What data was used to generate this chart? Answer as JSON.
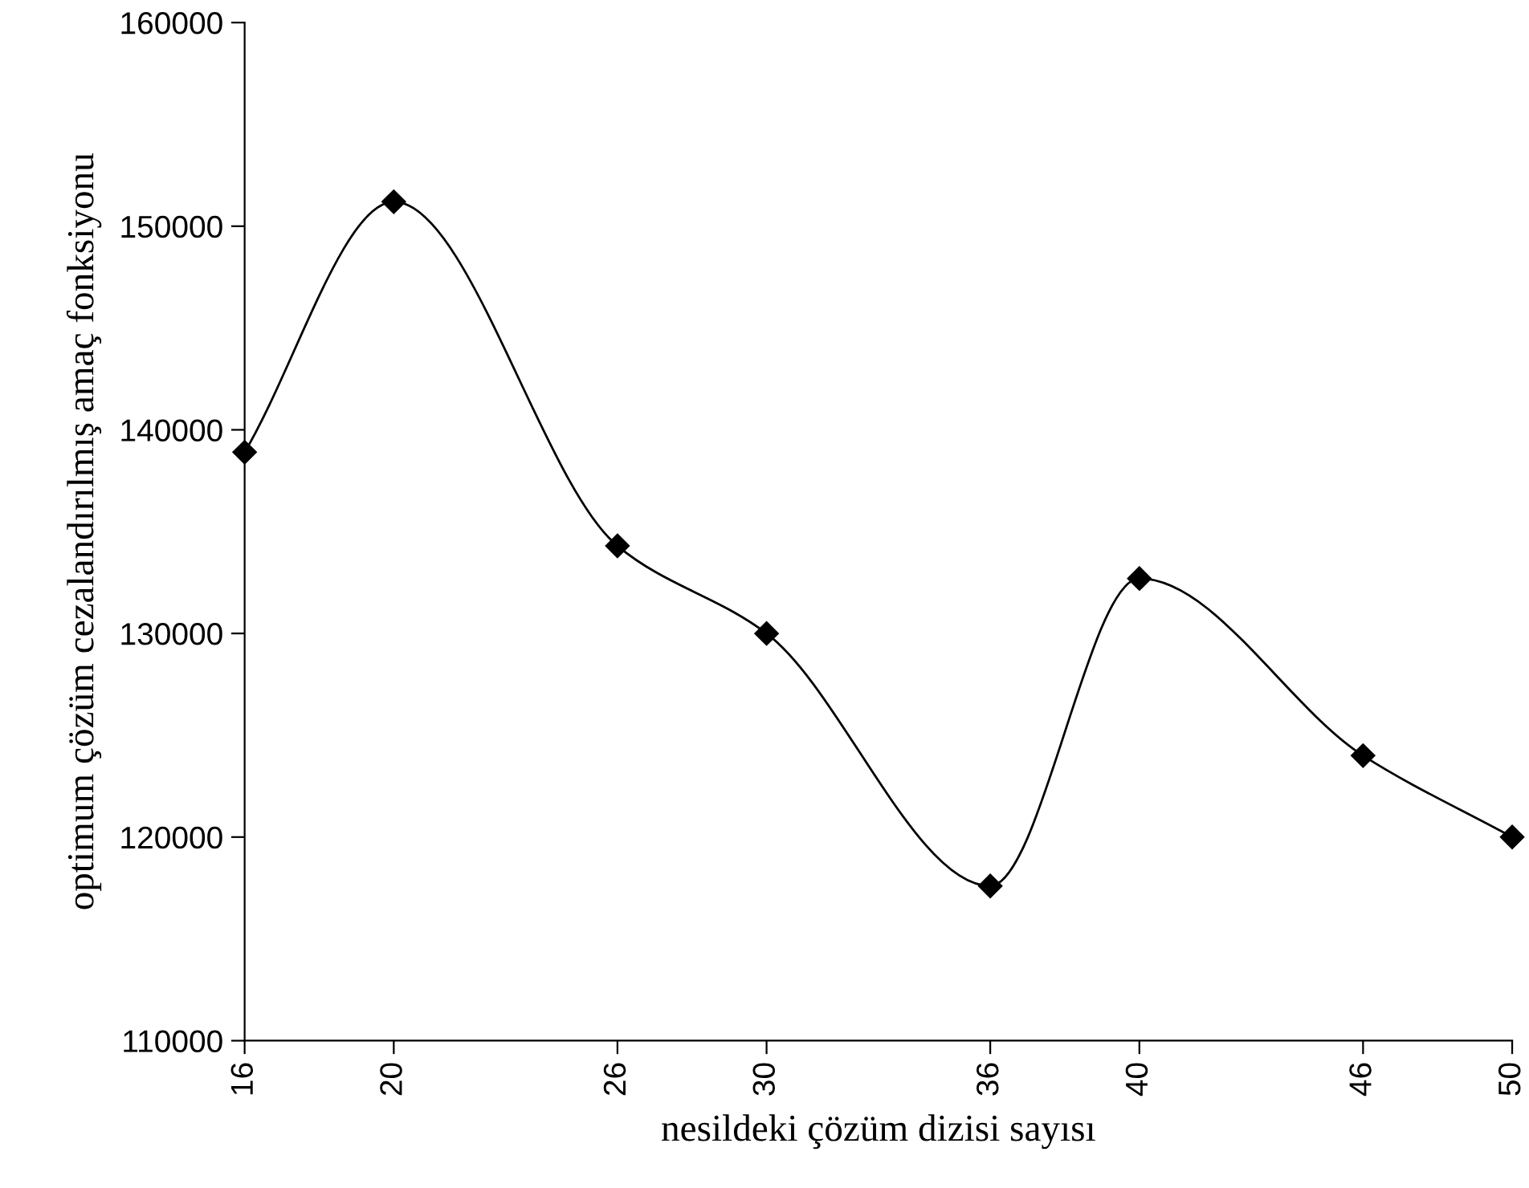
{
  "chart_data": {
    "type": "line",
    "xlabel": "nesildeki çözüm dizisi sayısı",
    "ylabel": "optimum çözüm cezalandırılmış amaç fonksiyonu",
    "x": [
      16,
      20,
      26,
      30,
      36,
      40,
      46,
      50
    ],
    "series": [
      {
        "color": "#000000",
        "values": [
          138900,
          151200,
          134300,
          130000,
          117600,
          132700,
          124000,
          120000
        ]
      }
    ],
    "xlim": [
      16,
      50
    ],
    "xticks": [
      16,
      20,
      26,
      30,
      36,
      40,
      46,
      50
    ],
    "ylim": [
      110000,
      160000
    ],
    "yticks": [
      110000,
      120000,
      130000,
      140000,
      150000,
      160000
    ],
    "grid": false,
    "legend": false,
    "marker": "diamond",
    "line_style": "solid"
  }
}
